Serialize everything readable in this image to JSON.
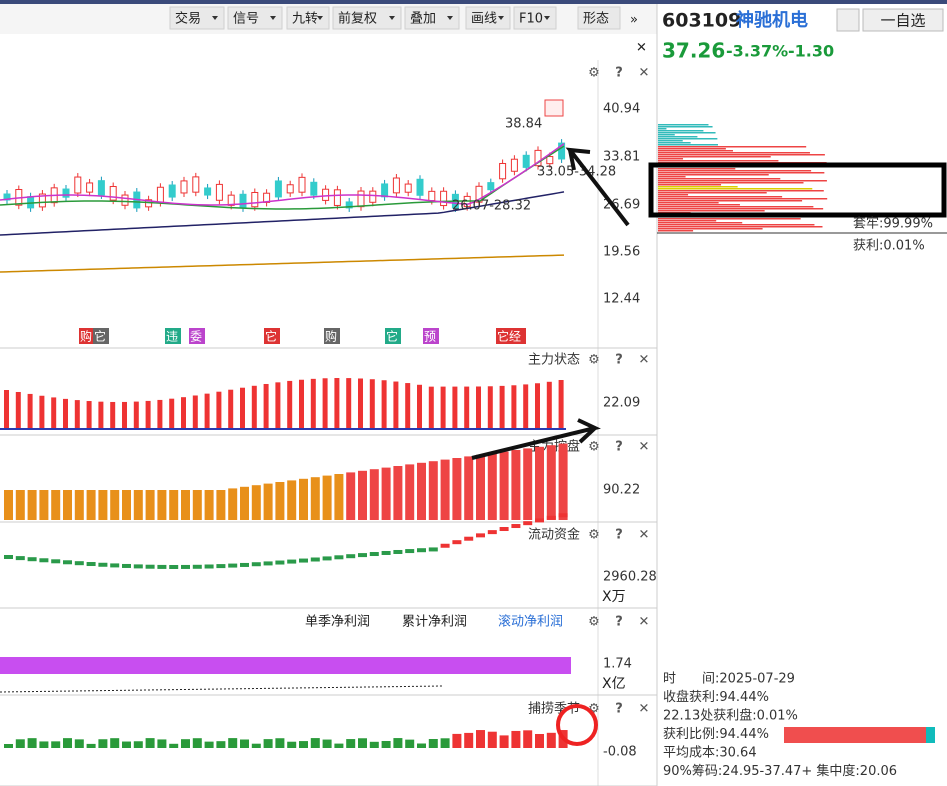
{
  "toolbar": [
    "交易",
    "信号",
    "九转",
    "前复权",
    "叠加",
    "画线",
    "F10",
    "形态"
  ],
  "stock": {
    "code": "603109",
    "name": "神驰机电",
    "price": "37.26",
    "change_pct": "-3.37%",
    "change": "-1.30"
  },
  "buttons": [
    "一自选"
  ],
  "main_panel": {
    "axis_labels": [
      "40.94",
      "33.81",
      "26.69",
      "19.56",
      "12.44"
    ],
    "annotations": [
      "38.84",
      "33.05-34.28",
      "26.07-28.32"
    ],
    "markers": [
      "购",
      "它",
      "违",
      "委",
      "它",
      "购",
      "它",
      "预",
      "它经"
    ]
  },
  "panels": [
    {
      "title": "主力状态",
      "axis_label": "22.09"
    },
    {
      "title": "主力控盘",
      "axis_label": "90.22"
    },
    {
      "title": "流动资金",
      "axis_label": "2960.28",
      "unit": "X万"
    },
    {
      "tabs": [
        "单季净利润",
        "累计净利润",
        "滚动净利润"
      ],
      "axis_label": "1.74",
      "unit": "X亿"
    },
    {
      "title": "捕捞季节",
      "axis_label": "-0.08"
    }
  ],
  "chip_panel": {
    "top_labels": [
      "套牢:99.99%",
      "获利:0.01%"
    ],
    "info": [
      "时　　间:2025-07-29",
      "收盘获利:94.44%",
      "22.13处获利盘:0.01%",
      "获利比例:94.44%",
      "平均成本:30.64",
      "90%筹码:24.95-37.47+ 集中度:20.06"
    ]
  }
}
